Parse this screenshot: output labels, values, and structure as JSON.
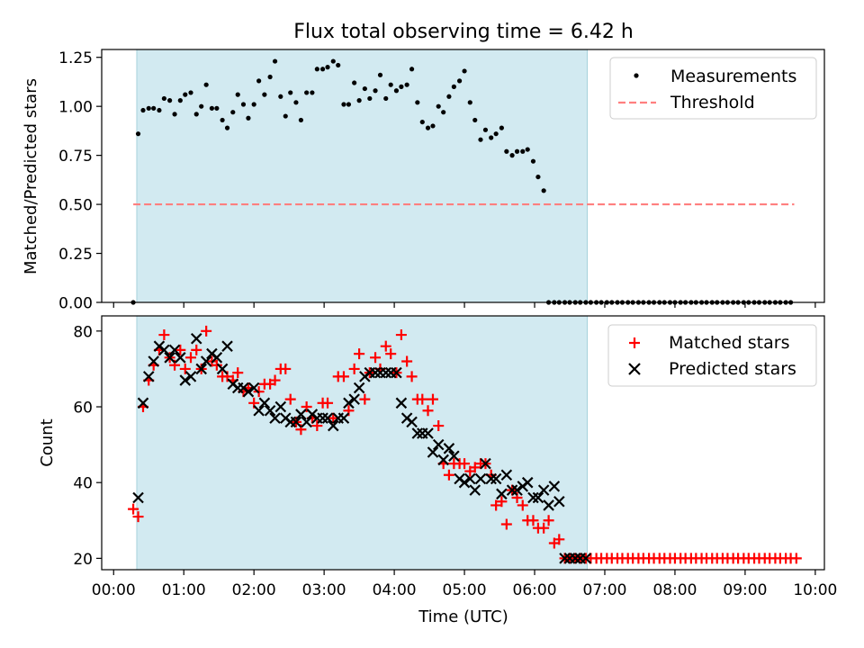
{
  "title": "Flux total observing time = 6.42 h",
  "colors": {
    "band": "#add8e6",
    "band_edge": "#a6d2dc",
    "measurement": "#000000",
    "threshold": "#ff7f7f",
    "matched": "#ff0000",
    "predicted": "#000000"
  },
  "top": {
    "ylabel": "Matched/Predicted stars",
    "ylim": [
      0,
      1.29
    ],
    "yticks": [
      0,
      0.25,
      0.5,
      0.75,
      1.0,
      1.25
    ],
    "ytick_labels": [
      "0.00",
      "0.25",
      "0.50",
      "0.75",
      "1.00",
      "1.25"
    ],
    "legend": {
      "placement": "top-right",
      "measurements_label": "Measurements",
      "threshold_label": "Threshold"
    }
  },
  "bottom": {
    "ylabel": "Count",
    "xlabel": "Time (UTC)",
    "ylim": [
      17,
      84
    ],
    "yticks": [
      20,
      40,
      60,
      80
    ],
    "ytick_labels": [
      "20",
      "40",
      "60",
      "80"
    ],
    "legend": {
      "placement": "top-right",
      "matched_label": "Matched stars",
      "predicted_label": "Predicted stars"
    }
  },
  "chart_data": [
    {
      "type": "scatter",
      "panel": "top",
      "xlim": [
        -0.17,
        10.13
      ],
      "x_unit": "hours UTC",
      "ylim": [
        0,
        1.29
      ],
      "grid": false,
      "shaded_interval": [
        0.33,
        6.75
      ],
      "threshold": {
        "y": 0.5,
        "x_range": [
          0.28,
          9.7
        ]
      },
      "series": [
        {
          "name": "Measurements",
          "x": [
            0.28,
            0.35,
            0.42,
            0.5,
            0.57,
            0.65,
            0.72,
            0.8,
            0.87,
            0.95,
            1.02,
            1.1,
            1.18,
            1.25,
            1.32,
            1.4,
            1.47,
            1.55,
            1.62,
            1.7,
            1.77,
            1.85,
            1.92,
            2.0,
            2.07,
            2.15,
            2.23,
            2.3,
            2.38,
            2.45,
            2.52,
            2.6,
            2.67,
            2.75,
            2.83,
            2.9,
            2.98,
            3.05,
            3.13,
            3.2,
            3.28,
            3.35,
            3.43,
            3.5,
            3.58,
            3.65,
            3.73,
            3.8,
            3.88,
            3.95,
            4.03,
            4.1,
            4.18,
            4.25,
            4.33,
            4.4,
            4.48,
            4.55,
            4.63,
            4.7,
            4.78,
            4.85,
            4.93,
            5.0,
            5.08,
            5.15,
            5.23,
            5.3,
            5.38,
            5.45,
            5.53,
            5.6,
            5.68,
            5.75,
            5.83,
            5.9,
            5.98,
            6.05,
            6.13,
            6.2,
            6.28,
            6.35,
            6.43,
            6.5,
            6.58,
            6.65,
            6.73,
            6.8,
            6.88,
            6.95,
            7.03,
            7.1,
            7.18,
            7.25,
            7.33,
            7.4,
            7.48,
            7.55,
            7.63,
            7.7,
            7.78,
            7.85,
            7.93,
            8.0,
            8.08,
            8.15,
            8.23,
            8.3,
            8.38,
            8.45,
            8.53,
            8.6,
            8.68,
            8.75,
            8.83,
            8.9,
            8.98,
            9.05,
            9.13,
            9.2,
            9.28,
            9.35,
            9.43,
            9.5,
            9.58,
            9.65
          ],
          "y": [
            0.0,
            0.86,
            0.98,
            0.99,
            0.99,
            0.98,
            1.04,
            1.03,
            0.96,
            1.03,
            1.06,
            1.07,
            0.96,
            1.0,
            1.11,
            0.99,
            0.99,
            0.93,
            0.89,
            0.97,
            1.06,
            1.01,
            0.94,
            1.01,
            1.13,
            1.06,
            1.15,
            1.23,
            1.05,
            0.95,
            1.07,
            1.02,
            0.93,
            1.07,
            1.07,
            1.19,
            1.19,
            1.2,
            1.23,
            1.21,
            1.01,
            1.01,
            1.12,
            1.03,
            1.09,
            1.04,
            1.08,
            1.16,
            1.04,
            1.11,
            1.08,
            1.1,
            1.11,
            1.19,
            1.02,
            0.92,
            0.89,
            0.9,
            1.0,
            0.97,
            1.05,
            1.1,
            1.13,
            1.18,
            1.02,
            0.93,
            0.83,
            0.88,
            0.84,
            0.86,
            0.89,
            0.77,
            0.75,
            0.77,
            0.77,
            0.78,
            0.72,
            0.64,
            0.57,
            0.0,
            0.0,
            0.0,
            0.0,
            0.0,
            0.0,
            0.0,
            0.0,
            0.0,
            0.0,
            0.0,
            0.0,
            0.0,
            0.0,
            0.0,
            0.0,
            0.0,
            0.0,
            0.0,
            0.0,
            0.0,
            0.0,
            0.0,
            0.0,
            0.0,
            0.0,
            0.0,
            0.0,
            0.0,
            0.0,
            0.0,
            0.0,
            0.0,
            0.0,
            0.0,
            0.0,
            0.0,
            0.0,
            0.0,
            0.0,
            0.0,
            0.0,
            0.0,
            0.0,
            0.0,
            0.0,
            0.0
          ]
        },
        {
          "name": "Threshold",
          "x": [
            0.28,
            9.7
          ],
          "y": [
            0.5,
            0.5
          ]
        }
      ]
    },
    {
      "type": "scatter",
      "panel": "bottom",
      "xlim": [
        -0.17,
        10.13
      ],
      "x_unit": "hours UTC",
      "ylim": [
        17,
        84
      ],
      "xticks": [
        0,
        1,
        2,
        3,
        4,
        5,
        6,
        7,
        8,
        9,
        10
      ],
      "xtick_labels": [
        "00:00",
        "01:00",
        "02:00",
        "03:00",
        "04:00",
        "05:00",
        "06:00",
        "07:00",
        "08:00",
        "09:00",
        "10:00"
      ],
      "grid": false,
      "shaded_interval": [
        0.33,
        6.75
      ],
      "series": [
        {
          "name": "Matched stars",
          "x": [
            0.28,
            0.35,
            0.42,
            0.5,
            0.57,
            0.65,
            0.72,
            0.8,
            0.87,
            0.95,
            1.02,
            1.1,
            1.18,
            1.25,
            1.32,
            1.4,
            1.47,
            1.55,
            1.62,
            1.7,
            1.77,
            1.85,
            1.92,
            2.0,
            2.07,
            2.15,
            2.23,
            2.3,
            2.38,
            2.45,
            2.52,
            2.6,
            2.67,
            2.75,
            2.83,
            2.9,
            2.98,
            3.05,
            3.13,
            3.2,
            3.28,
            3.35,
            3.43,
            3.5,
            3.58,
            3.65,
            3.73,
            3.8,
            3.88,
            3.95,
            4.03,
            4.1,
            4.18,
            4.25,
            4.33,
            4.4,
            4.48,
            4.55,
            4.63,
            4.7,
            4.78,
            4.85,
            4.93,
            5.0,
            5.08,
            5.15,
            5.23,
            5.3,
            5.38,
            5.45,
            5.53,
            5.6,
            5.68,
            5.75,
            5.83,
            5.9,
            5.98,
            6.05,
            6.13,
            6.2,
            6.28,
            6.35,
            6.43,
            6.5,
            6.58,
            6.65,
            6.73,
            6.8,
            6.88,
            6.95,
            7.03,
            7.1,
            7.18,
            7.25,
            7.33,
            7.4,
            7.48,
            7.55,
            7.63,
            7.7,
            7.78,
            7.85,
            7.93,
            8.0,
            8.08,
            8.15,
            8.23,
            8.3,
            8.38,
            8.45,
            8.53,
            8.6,
            8.68,
            8.75,
            8.83,
            8.9,
            8.98,
            9.05,
            9.13,
            9.2,
            9.28,
            9.35,
            9.43,
            9.5,
            9.58,
            9.65,
            9.73
          ],
          "y": [
            33,
            31,
            60,
            67,
            71,
            75,
            79,
            73,
            71,
            75,
            70,
            73,
            75,
            70,
            80,
            72,
            71,
            68,
            68,
            67,
            69,
            64,
            65,
            61,
            64,
            66,
            66,
            67,
            70,
            70,
            62,
            56,
            54,
            60,
            57,
            55,
            61,
            61,
            57,
            68,
            68,
            59,
            70,
            74,
            62,
            69,
            73,
            70,
            76,
            74,
            69,
            79,
            72,
            68,
            62,
            62,
            59,
            62,
            55,
            45,
            42,
            45,
            45,
            45,
            43,
            44,
            45,
            45,
            42,
            34,
            35,
            29,
            38,
            36,
            34,
            30,
            30,
            28,
            28,
            30,
            24,
            25,
            20,
            20,
            20,
            20,
            20,
            20,
            20,
            20,
            20,
            20,
            20,
            20,
            20,
            20,
            20,
            20,
            20,
            20,
            20,
            20,
            20,
            20,
            20,
            20,
            20,
            20,
            20,
            20,
            20,
            20,
            20,
            20,
            20,
            20,
            20,
            20,
            20,
            20,
            20,
            20,
            20,
            20,
            20,
            20,
            20
          ]
        },
        {
          "name": "Predicted stars",
          "x": [
            0.35,
            0.42,
            0.5,
            0.57,
            0.65,
            0.72,
            0.8,
            0.87,
            0.95,
            1.02,
            1.1,
            1.18,
            1.25,
            1.32,
            1.4,
            1.47,
            1.55,
            1.62,
            1.7,
            1.77,
            1.85,
            1.92,
            2.0,
            2.07,
            2.15,
            2.23,
            2.3,
            2.38,
            2.45,
            2.52,
            2.6,
            2.67,
            2.75,
            2.83,
            2.9,
            2.98,
            3.05,
            3.13,
            3.2,
            3.28,
            3.35,
            3.43,
            3.5,
            3.58,
            3.65,
            3.73,
            3.8,
            3.88,
            3.95,
            4.03,
            4.1,
            4.18,
            4.25,
            4.33,
            4.4,
            4.48,
            4.55,
            4.63,
            4.7,
            4.78,
            4.85,
            4.93,
            5.0,
            5.08,
            5.15,
            5.23,
            5.3,
            5.38,
            5.45,
            5.53,
            5.6,
            5.68,
            5.75,
            5.83,
            5.9,
            5.98,
            6.05,
            6.13,
            6.2,
            6.28,
            6.35,
            6.43,
            6.5,
            6.58,
            6.65,
            6.73
          ],
          "y": [
            36,
            61,
            68,
            72,
            76,
            75,
            73,
            75,
            73,
            67,
            68,
            78,
            70,
            72,
            74,
            73,
            70,
            76,
            66,
            65,
            65,
            64,
            65,
            59,
            61,
            59,
            57,
            60,
            57,
            56,
            56,
            58,
            56,
            58,
            57,
            57,
            57,
            55,
            57,
            57,
            61,
            62,
            65,
            68,
            69,
            69,
            69,
            69,
            69,
            69,
            61,
            57,
            56,
            53,
            53,
            53,
            48,
            50,
            46,
            49,
            47,
            41,
            40,
            41,
            38,
            41,
            45,
            41,
            41,
            37,
            42,
            38,
            38,
            39,
            40,
            36,
            36,
            38,
            34,
            39,
            35,
            20,
            20,
            20,
            20,
            20
          ]
        }
      ]
    }
  ]
}
